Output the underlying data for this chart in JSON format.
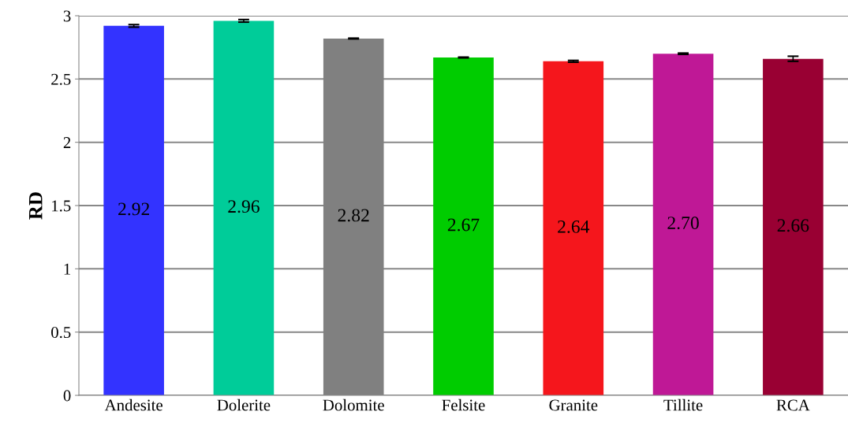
{
  "chart_data": {
    "type": "bar",
    "ylabel": "RD",
    "categories": [
      "Andesite",
      "Dolerite",
      "Dolomite",
      "Felsite",
      "Granite",
      "Tillite",
      "RCA"
    ],
    "values": [
      2.92,
      2.96,
      2.82,
      2.67,
      2.64,
      2.7,
      2.66
    ],
    "colors": [
      "#3333ff",
      "#00cc99",
      "#808080",
      "#00cc00",
      "#f5161c",
      "#bf1896",
      "#990033"
    ],
    "errors": [
      0.01,
      0.01,
      0.003,
      0.003,
      0.007,
      0.005,
      0.02
    ],
    "value_labels": [
      "2.92",
      "2.96",
      "2.82",
      "2.67",
      "2.64",
      "2.70",
      "2.66"
    ],
    "ylim": [
      0,
      3
    ],
    "yticks": [
      0,
      0.5,
      1,
      1.5,
      2,
      2.5,
      3
    ],
    "grid": "y"
  }
}
